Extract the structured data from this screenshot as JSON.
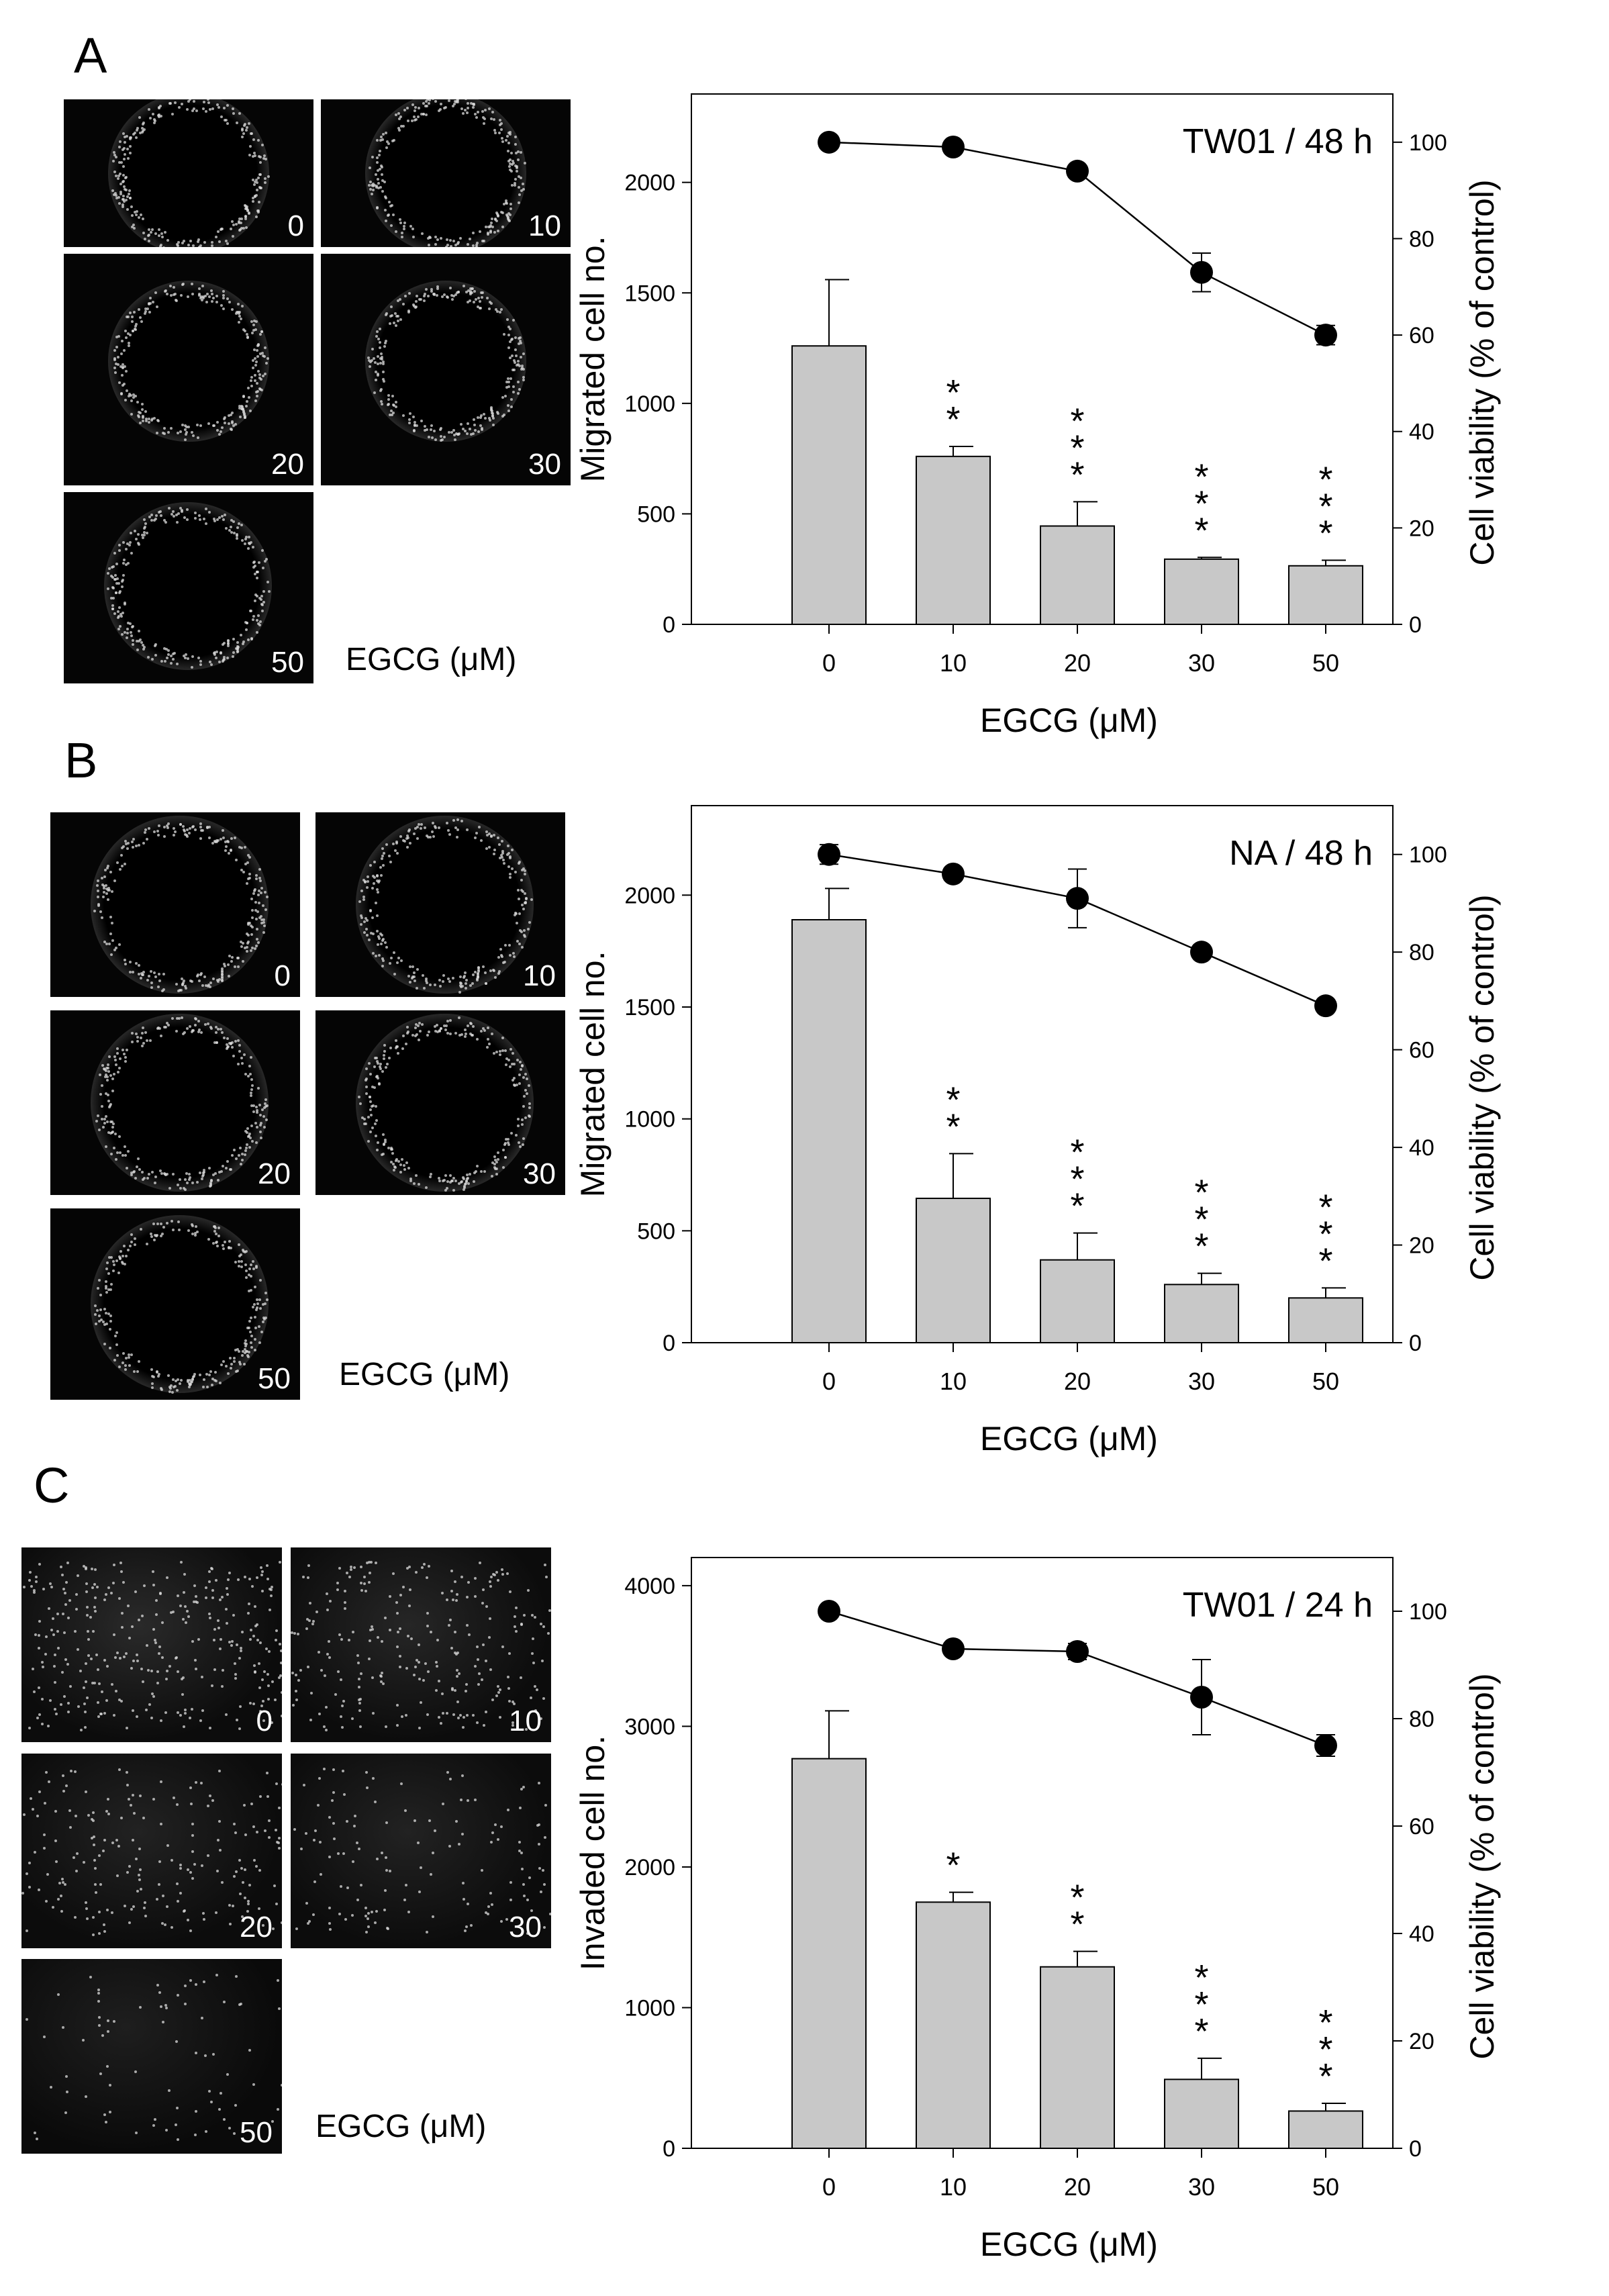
{
  "panels": [
    {
      "letter": "A",
      "micro_labels": [
        "0",
        "10",
        "20",
        "30",
        "50"
      ],
      "micro_caption": "EGCG (μM)",
      "micro_style": "dish"
    },
    {
      "letter": "B",
      "micro_labels": [
        "0",
        "10",
        "20",
        "30",
        "50"
      ],
      "micro_caption": "EGCG (μM)",
      "micro_style": "dish"
    },
    {
      "letter": "C",
      "micro_labels": [
        "0",
        "10",
        "20",
        "30",
        "50"
      ],
      "micro_caption": "EGCG (μM)",
      "micro_style": "field"
    }
  ],
  "chart_data": [
    {
      "type": "bar",
      "title": "TW01 / 48 h",
      "xlabel": "EGCG (μM)",
      "ylabel": "Migrated cell no.",
      "y2label": "Cell viability (% of control)",
      "categories": [
        "0",
        "10",
        "20",
        "30",
        "50"
      ],
      "ylim": [
        0,
        2400
      ],
      "yticks": [
        0,
        500,
        1000,
        1500,
        2000
      ],
      "y2lim": [
        0,
        110
      ],
      "y2ticks": [
        0,
        20,
        40,
        60,
        80,
        100
      ],
      "bar_values": [
        1260,
        760,
        445,
        295,
        265
      ],
      "bar_errors": [
        300,
        45,
        110,
        8,
        25
      ],
      "significance": [
        "",
        "**",
        "***",
        "***",
        "***"
      ],
      "line_values": [
        100,
        99,
        94,
        73,
        60
      ],
      "line_errors": [
        0,
        0,
        0,
        4,
        2
      ],
      "colors": {
        "bar": "#c8c8c8",
        "line": "#000000"
      }
    },
    {
      "type": "bar",
      "title": "NA  / 48 h",
      "xlabel": "EGCG (μM)",
      "ylabel": "Migrated cell no.",
      "y2label": "Cell viability (% of control)",
      "categories": [
        "0",
        "10",
        "20",
        "30",
        "50"
      ],
      "ylim": [
        0,
        2400
      ],
      "yticks": [
        0,
        500,
        1000,
        1500,
        2000
      ],
      "y2lim": [
        0,
        110
      ],
      "y2ticks": [
        0,
        20,
        40,
        60,
        80,
        100
      ],
      "bar_values": [
        1890,
        645,
        370,
        260,
        200
      ],
      "bar_errors": [
        140,
        200,
        120,
        50,
        45
      ],
      "significance": [
        "",
        "**",
        "***",
        "***",
        "***"
      ],
      "line_values": [
        100,
        96,
        91,
        80,
        69
      ],
      "line_errors": [
        2,
        0,
        6,
        0,
        0
      ],
      "colors": {
        "bar": "#c8c8c8",
        "line": "#000000"
      }
    },
    {
      "type": "bar",
      "title": "TW01 / 24 h",
      "xlabel": "EGCG (μM)",
      "ylabel": "Invaded cell no.",
      "y2label": "Cell viability (% of control)",
      "categories": [
        "0",
        "10",
        "20",
        "30",
        "50"
      ],
      "ylim": [
        0,
        4200
      ],
      "yticks": [
        0,
        1000,
        2000,
        3000,
        4000
      ],
      "y2lim": [
        0,
        110
      ],
      "y2ticks": [
        0,
        20,
        40,
        60,
        80,
        100
      ],
      "bar_values": [
        2770,
        1750,
        1290,
        490,
        265
      ],
      "bar_errors": [
        340,
        70,
        110,
        150,
        55
      ],
      "significance": [
        "",
        "*",
        "**",
        "***",
        "***"
      ],
      "line_values": [
        100,
        93,
        92.5,
        84,
        75
      ],
      "line_errors": [
        0,
        0,
        1.5,
        7,
        2
      ],
      "colors": {
        "bar": "#c8c8c8",
        "line": "#000000"
      }
    }
  ]
}
